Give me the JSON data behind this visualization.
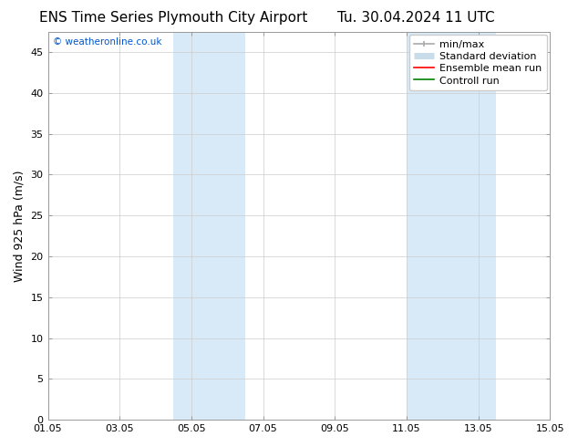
{
  "title_left": "ENS Time Series Plymouth City Airport",
  "title_right": "Tu. 30.04.2024 11 UTC",
  "ylabel": "Wind 925 hPa (m/s)",
  "watermark": "© weatheronline.co.uk",
  "watermark_color": "#0055cc",
  "xlim": [
    0,
    14
  ],
  "ylim": [
    0,
    47.5
  ],
  "yticks": [
    0,
    5,
    10,
    15,
    20,
    25,
    30,
    35,
    40,
    45
  ],
  "xtick_labels": [
    "01.05",
    "03.05",
    "05.05",
    "07.05",
    "09.05",
    "11.05",
    "13.05",
    "15.05"
  ],
  "xtick_positions": [
    0,
    2,
    4,
    6,
    8,
    10,
    12,
    14
  ],
  "bg_color": "#ffffff",
  "plot_bg_color": "#ffffff",
  "shaded_bands": [
    {
      "x_start": 3.5,
      "x_end": 4.0,
      "color": "#d8eaf8"
    },
    {
      "x_start": 4.0,
      "x_end": 5.5,
      "color": "#d8eaf8"
    },
    {
      "x_start": 10.0,
      "x_end": 10.5,
      "color": "#d8eaf8"
    },
    {
      "x_start": 10.5,
      "x_end": 12.5,
      "color": "#d8eaf8"
    }
  ],
  "shaded_bands_simple": [
    {
      "x_start": 3.5,
      "x_end": 5.5,
      "color": "#d8eaf8"
    },
    {
      "x_start": 10.0,
      "x_end": 12.5,
      "color": "#d8eaf8"
    }
  ],
  "title_fontsize": 11,
  "ylabel_fontsize": 9,
  "tick_fontsize": 8,
  "legend_fontsize": 8,
  "minmax_color": "#aaaaaa",
  "std_color": "#c8dcea",
  "ensemble_color": "#ff0000",
  "control_color": "#008000",
  "grid_color": "#cccccc",
  "spine_color": "#999999"
}
